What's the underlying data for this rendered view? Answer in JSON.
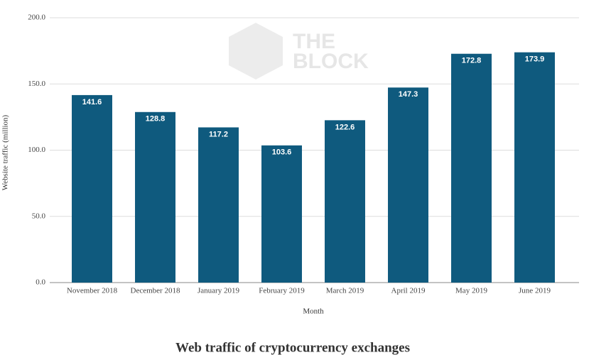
{
  "chart_data": {
    "type": "bar",
    "caption": "Web traffic of cryptocurrency exchanges",
    "watermark": [
      "THE",
      "BLOCK"
    ],
    "x_label": "Month",
    "y_label": "Website traffic (million)",
    "categories": [
      "November 2018",
      "December 2018",
      "January 2019",
      "February 2019",
      "March 2019",
      "April 2019",
      "May 2019",
      "June 2019"
    ],
    "values": [
      141.6,
      128.8,
      117.2,
      103.6,
      122.6,
      147.3,
      172.8,
      173.9
    ],
    "color": "#0f5a7e",
    "ylim": [
      0,
      200
    ],
    "yticks": [
      {
        "value": 0,
        "label": "0.0"
      },
      {
        "value": 50,
        "label": "50.0"
      },
      {
        "value": 100,
        "label": "100.0"
      },
      {
        "value": 150,
        "label": "150.0"
      },
      {
        "value": 200,
        "label": "200.0"
      }
    ],
    "grid": true
  }
}
